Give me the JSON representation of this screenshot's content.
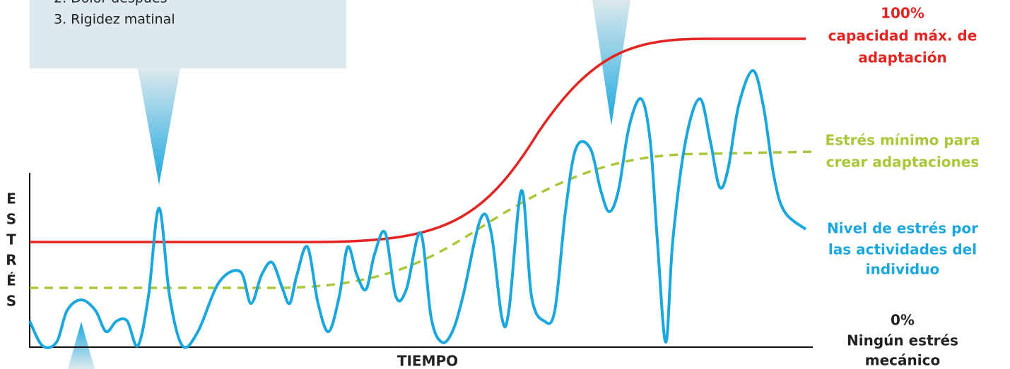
{
  "callout": {
    "items": [
      "2. Dolor después",
      "3. Rigidez matinal"
    ]
  },
  "labels": {
    "max": {
      "percent": "100%",
      "lines": [
        "capacidad máx. de",
        "adaptación"
      ]
    },
    "min": {
      "lines": [
        "Estrés mínimo para",
        "crear adaptaciones"
      ]
    },
    "level": {
      "lines": [
        "Nivel de estrés por",
        "las actividades del",
        "individuo"
      ]
    },
    "zero": {
      "percent": "0%",
      "lines": [
        "Ningún estrés",
        "mecánico"
      ]
    }
  },
  "x_axis_label": "TIEMPO",
  "y_axis_letters": [
    "E",
    "S",
    "T",
    "R",
    "É",
    "S"
  ]
}
